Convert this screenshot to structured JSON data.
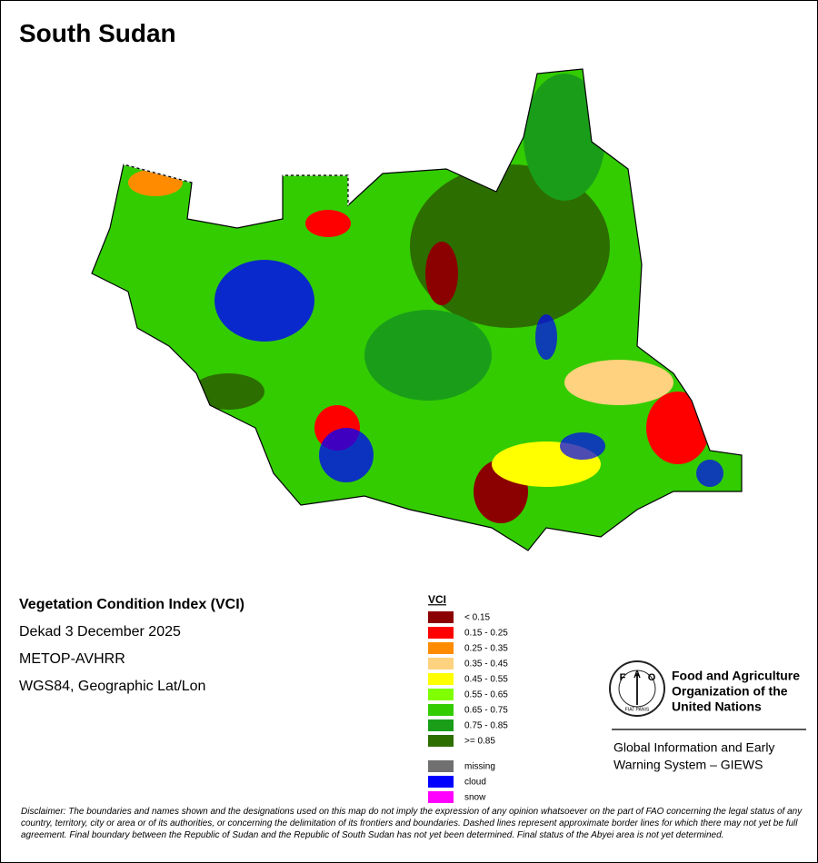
{
  "title": "South Sudan",
  "info": {
    "heading": "Vegetation Condition Index (VCI)",
    "lines": [
      "Dekad 3 December 2025",
      "METOP-AVHRR",
      "WGS84, Geographic Lat/Lon"
    ]
  },
  "legend": {
    "title": "VCI",
    "items": [
      {
        "label": "< 0.15",
        "color": "#8b0000"
      },
      {
        "label": "0.15 - 0.25",
        "color": "#ff0000"
      },
      {
        "label": "0.25 - 0.35",
        "color": "#ff8c00"
      },
      {
        "label": "0.35 - 0.45",
        "color": "#ffd27f"
      },
      {
        "label": "0.45 - 0.55",
        "color": "#ffff00"
      },
      {
        "label": "0.55 - 0.65",
        "color": "#80ff00"
      },
      {
        "label": "0.65 - 0.75",
        "color": "#33cc00"
      },
      {
        "label": "0.75 - 0.85",
        "color": "#1a9e1a"
      },
      {
        "label": ">= 0.85",
        "color": "#2d6e00"
      }
    ],
    "other": [
      {
        "label": "missing",
        "color": "#707070"
      },
      {
        "label": "cloud",
        "color": "#0000ff"
      },
      {
        "label": "snow",
        "color": "#ff00ff"
      }
    ]
  },
  "logo": {
    "letters": [
      "F",
      "A",
      "O"
    ],
    "motto": "FIAT PANIS"
  },
  "org": {
    "name": [
      "Food and Agriculture",
      "Organization of the",
      "United Nations"
    ],
    "system": [
      "Global Information and Early",
      "Warning System – GIEWS"
    ]
  },
  "disclaimer": "Disclaimer: The boundaries and names shown and the designations used on this map do not imply the expression of any opinion whatsoever on the part of FAO concerning the legal status of any country, territory, city or area or of its authorities, or concerning the delimitation of its frontiers and boundaries. Dashed lines represent approximate border lines for which there may not yet be full agreement.  Final boundary between the Republic of Sudan and the Republic of South Sudan has not yet been determined. Final status of the Abyei area is not yet determined."
}
